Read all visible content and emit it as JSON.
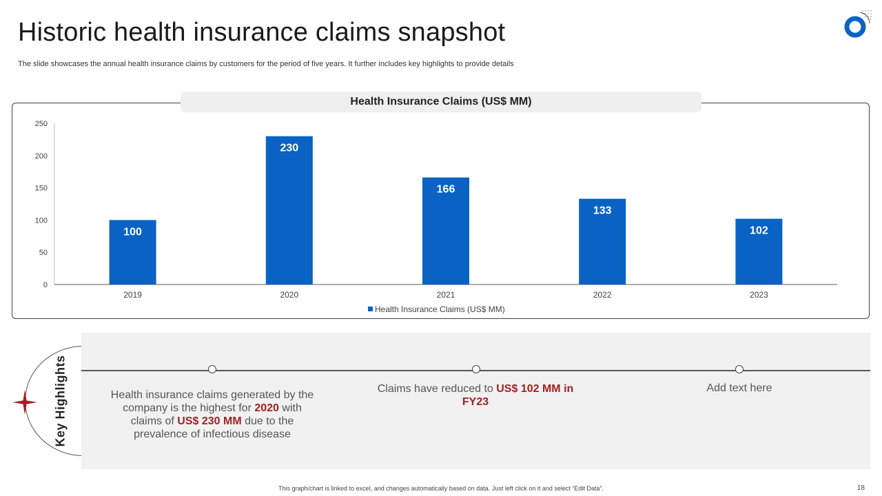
{
  "title": "Historic health insurance claims snapshot",
  "subtitle": "The slide showcases the annual health insurance claims by customers for the period of five years. It further includes key highlights to provide details",
  "colors": {
    "bar": "#0a63c4",
    "accent": "#a31f24",
    "logo": "#0a63c4"
  },
  "icons": {
    "logo": "ring-logo-icon",
    "star": "compass-star-icon"
  },
  "chart_header": "Health Insurance Claims (US$ MM)",
  "chart_data": {
    "type": "bar",
    "categories": [
      "2019",
      "2020",
      "2021",
      "2022",
      "2023"
    ],
    "series": [
      {
        "name": "Health Insurance Claims (US$ MM)",
        "values": [
          100,
          230,
          166,
          133,
          102
        ]
      }
    ],
    "ylim": [
      0,
      250
    ],
    "yticks": [
      0,
      50,
      100,
      150,
      200,
      250
    ],
    "legend": "bottom",
    "grid": false,
    "data_labels": true
  },
  "highlights": {
    "label": "Key Highlights",
    "items": [
      {
        "p1": "Health insurance claims generated by the company is the highest for ",
        "b1": "2020",
        "p2": " with claims of ",
        "b2": "US$ 230 MM",
        "p3": " due to the prevalence of infectious disease"
      },
      {
        "p1": "Claims have reduced to ",
        "b1": "US$ 102 MM in FY23"
      },
      {
        "p1": "Add text here"
      }
    ]
  },
  "footer": {
    "note": "This graph/chart is linked to excel, and changes automatically based on data. Just left click on it and select “Edit Data”.",
    "page": "18"
  }
}
